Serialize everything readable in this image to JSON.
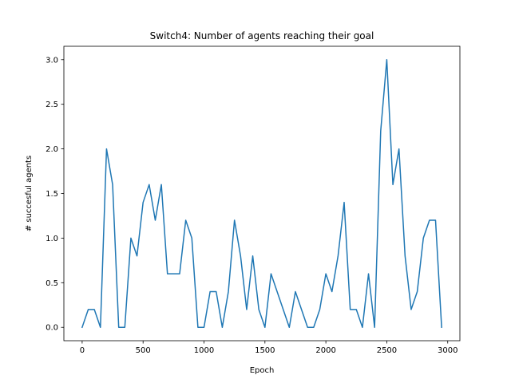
{
  "chart_data": {
    "type": "line",
    "title": "Switch4: Number of agents reaching their goal",
    "xlabel": "Epoch",
    "ylabel": "# succesful agents",
    "xlim": [
      -150,
      3100
    ],
    "ylim": [
      -0.15,
      3.15
    ],
    "xticks": [
      0,
      500,
      1000,
      1500,
      2000,
      2500,
      3000
    ],
    "xtick_labels": [
      "0",
      "500",
      "1000",
      "1500",
      "2000",
      "2500",
      "3000"
    ],
    "yticks": [
      0.0,
      0.5,
      1.0,
      1.5,
      2.0,
      2.5,
      3.0
    ],
    "ytick_labels": [
      "0.0",
      "0.5",
      "1.0",
      "1.5",
      "2.0",
      "2.5",
      "3.0"
    ],
    "grid": false,
    "series": [
      {
        "color": "#1f77b4",
        "x": [
          0,
          50,
          100,
          150,
          200,
          250,
          300,
          350,
          400,
          450,
          500,
          550,
          600,
          650,
          700,
          750,
          800,
          850,
          900,
          950,
          1000,
          1050,
          1100,
          1150,
          1200,
          1250,
          1300,
          1350,
          1400,
          1450,
          1500,
          1550,
          1600,
          1650,
          1700,
          1750,
          1800,
          1850,
          1900,
          1950,
          2000,
          2050,
          2100,
          2150,
          2200,
          2250,
          2300,
          2350,
          2400,
          2450,
          2500,
          2550,
          2600,
          2650,
          2700,
          2750,
          2800,
          2850,
          2900,
          2950
        ],
        "y": [
          0.0,
          0.2,
          0.2,
          0.0,
          2.0,
          1.6,
          0.0,
          0.0,
          1.0,
          0.8,
          1.4,
          1.6,
          1.2,
          1.6,
          0.6,
          0.6,
          0.6,
          1.2,
          1.0,
          0.0,
          0.0,
          0.4,
          0.4,
          0.0,
          0.4,
          1.2,
          0.8,
          0.2,
          0.8,
          0.2,
          0.0,
          0.6,
          0.4,
          0.2,
          0.0,
          0.4,
          0.2,
          0.0,
          0.0,
          0.2,
          0.6,
          0.4,
          0.8,
          1.4,
          0.2,
          0.2,
          0.0,
          0.6,
          0.0,
          2.2,
          3.0,
          1.6,
          2.0,
          0.8,
          0.2,
          0.4,
          1.0,
          1.2,
          1.2,
          0.0
        ]
      }
    ]
  }
}
